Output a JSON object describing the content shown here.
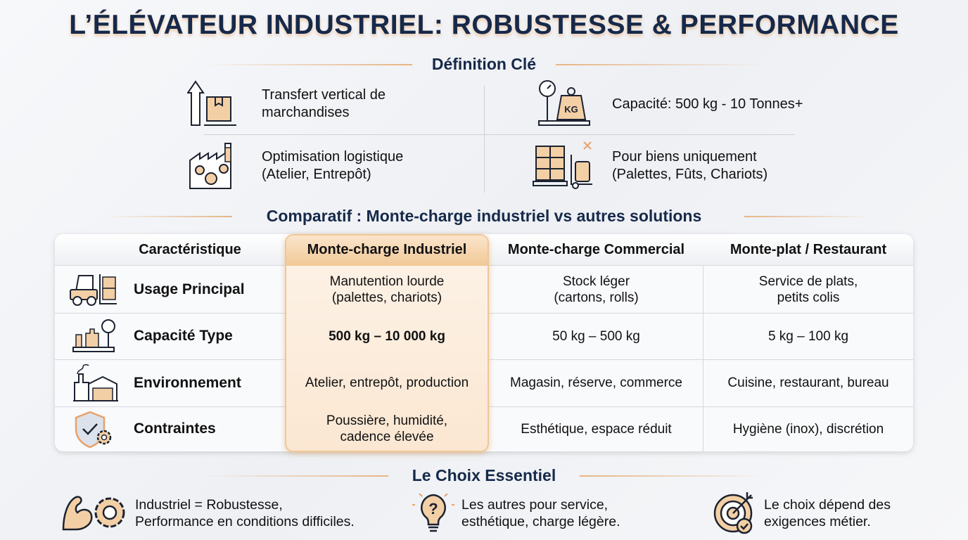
{
  "title": "L’ÉLÉVATEUR INDUSTRIEL: ROBUSTESSE & PERFORMANCE",
  "definition": {
    "heading": "Définition Clé",
    "items": [
      {
        "icon": "box-up-arrow-icon",
        "line1": "Transfert vertical de",
        "line2": "marchandises"
      },
      {
        "icon": "scale-kg-icon",
        "line1": "Capacité: 500 kg - 10 Tonnes+",
        "line2": ""
      },
      {
        "icon": "factory-gears-icon",
        "line1": "Optimisation logistique",
        "line2": "(Atelier, Entrepôt)"
      },
      {
        "icon": "pallet-barrel-icon",
        "line1": "Pour biens uniquement",
        "line2": "(Palettes, Fûts, Chariots)"
      }
    ],
    "kg_label": "KG"
  },
  "comparison": {
    "heading": "Comparatif : Monte-charge industriel vs autres solutions",
    "columns": [
      "Caractéristique",
      "Monte-charge Industriel",
      "Monte-charge Commercial",
      "Monte-plat / Restaurant"
    ],
    "rows": [
      {
        "icon": "forklift-icon",
        "label": "Usage Principal",
        "cells": [
          [
            "Manutention lourde",
            "(palettes, chariots)"
          ],
          [
            "Stock léger",
            "(cartons, rolls)"
          ],
          [
            "Service de plats,",
            "petits colis"
          ]
        ]
      },
      {
        "icon": "weights-scale-icon",
        "label": "Capacité Type",
        "cells": [
          [
            "500 kg – 10 000 kg"
          ],
          [
            "50 kg – 500 kg"
          ],
          [
            "5 kg – 100 kg"
          ]
        ]
      },
      {
        "icon": "warehouse-icon",
        "label": "Environnement",
        "cells": [
          [
            "Atelier, entrepôt, production"
          ],
          [
            "Magasin, réserve, commerce"
          ],
          [
            "Cuisine, restaurant, bureau"
          ]
        ]
      },
      {
        "icon": "shield-gear-icon",
        "label": "Contraintes",
        "cells": [
          [
            "Poussière, humidité,",
            "cadence élevée"
          ],
          [
            "Esthétique, espace réduit"
          ],
          [
            "Hygiène (inox), discrétion"
          ]
        ]
      }
    ],
    "highlight_color": "#f1c896"
  },
  "choice": {
    "heading": "Le Choix Essentiel",
    "items": [
      {
        "icon": "muscle-gear-icon",
        "line1": "Industriel = Robustesse,",
        "line2": "Performance en conditions difficiles."
      },
      {
        "icon": "lightbulb-question-icon",
        "line1": "Les autres pour service,",
        "line2": "esthétique, charge légère."
      },
      {
        "icon": "target-check-icon",
        "line1": "Le choix dépend des",
        "line2": "exigences métier."
      }
    ]
  },
  "colors": {
    "navy": "#16294a",
    "accent": "#e8b482",
    "peach": "#f3cfa5"
  }
}
